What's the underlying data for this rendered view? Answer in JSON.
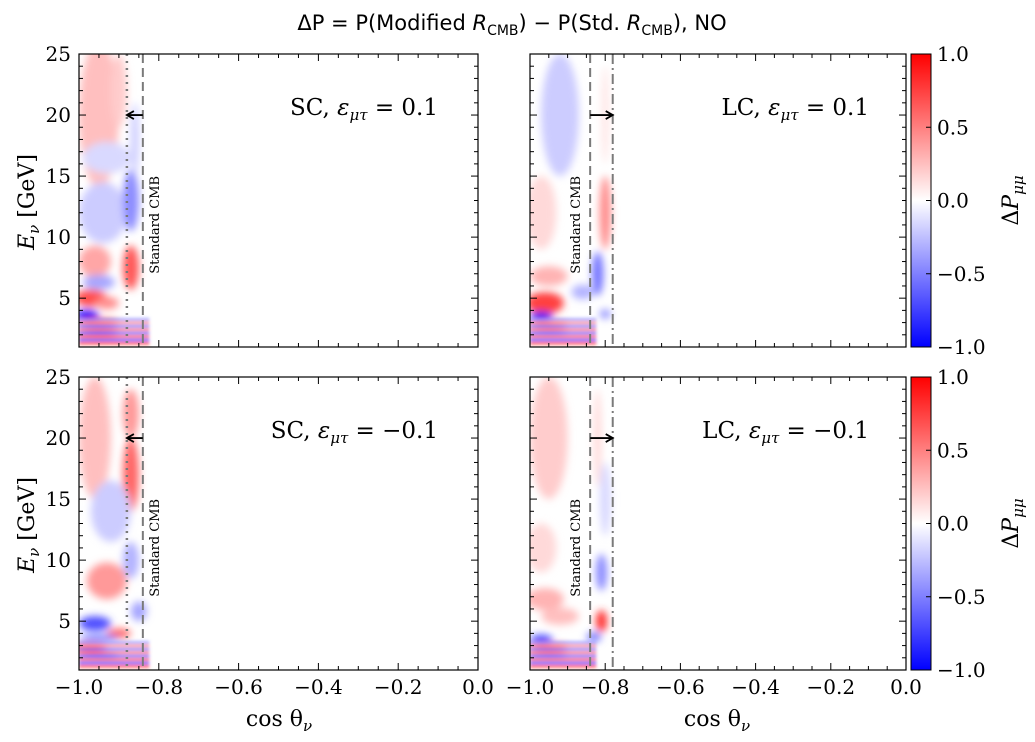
{
  "chart_data": {
    "type": "heatmap",
    "title": "ΔP = P(Modified R_CMB) − P(Std. R_CMB), NO",
    "title_parts": {
      "lhs": "ΔP = P(Modified ",
      "rcmb": "R",
      "sub_cmb": "CMB",
      "mid": ") − P(Std. ",
      "end": "), NO"
    },
    "xlabel": "cos θ",
    "xlabel_sub": "ν",
    "ylabel": "E",
    "ylabel_sub": "ν",
    "ylabel_unit": " [GeV]",
    "xlim": [
      -1.0,
      0.0
    ],
    "ylim": [
      1,
      25
    ],
    "x_ticks": [
      -1.0,
      -0.8,
      -0.6,
      -0.4,
      -0.2,
      0.0
    ],
    "x_tick_labels": [
      "−1.0",
      "−0.8",
      "−0.6",
      "−0.4",
      "−0.2",
      "0.0"
    ],
    "y_ticks": [
      5,
      10,
      15,
      20,
      25
    ],
    "y_tick_labels": [
      "5",
      "10",
      "15",
      "20",
      "25"
    ],
    "colorbar": {
      "label": "ΔP",
      "label_sub": "μμ",
      "range": [
        -1.0,
        1.0
      ],
      "ticks": [
        -1.0,
        -0.5,
        0.0,
        0.5,
        1.0
      ],
      "tick_labels": [
        "−1.0",
        "−0.5",
        "0.0",
        "0.5",
        "1.0"
      ],
      "colors": [
        "#0000ff",
        "#ffffff",
        "#ff0000"
      ]
    },
    "standard_cmb_label": "Standard CMB",
    "panels": [
      {
        "id": "sc-pos",
        "label_prefix": "SC, ",
        "label_value": " = 0.1",
        "std_cmb_cos": -0.84,
        "modified_cmb_cos": -0.88,
        "arrow": "left",
        "arrow_E": 20
      },
      {
        "id": "lc-pos",
        "label_prefix": "LC, ",
        "label_value": " = 0.1",
        "std_cmb_cos": -0.84,
        "modified_cmb_cos": -0.78,
        "arrow": "right",
        "arrow_E": 20
      },
      {
        "id": "sc-neg",
        "label_prefix": "SC, ",
        "label_value": " = −0.1",
        "std_cmb_cos": -0.84,
        "modified_cmb_cos": -0.88,
        "arrow": "left",
        "arrow_E": 20
      },
      {
        "id": "lc-neg",
        "label_prefix": "LC, ",
        "label_value": " = −0.1",
        "std_cmb_cos": -0.84,
        "modified_cmb_cos": -0.78,
        "arrow": "right",
        "arrow_E": 20
      }
    ],
    "epsilon_symbol": "ε",
    "epsilon_sub": "μτ"
  }
}
